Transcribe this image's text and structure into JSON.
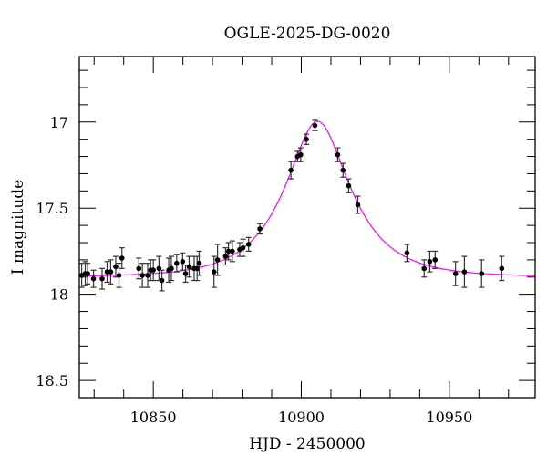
{
  "chart_data": {
    "type": "scatter",
    "title": "OGLE-2025-DG-0020",
    "xlabel": "HJD - 2450000",
    "ylabel": "I magnitude",
    "xlim": [
      10825,
      10979
    ],
    "ylim": [
      18.6,
      16.62
    ],
    "y_inverted": true,
    "x_ticks": [
      10850,
      10900,
      10950
    ],
    "x_tick_labels": [
      "10850",
      "10900",
      "10950"
    ],
    "x_minor_step": 10,
    "y_ticks": [
      17,
      17.5,
      18,
      18.5
    ],
    "y_tick_labels": [
      "17",
      "17.5",
      "18",
      "18.5"
    ],
    "y_minor_step": 0.1,
    "grid": false,
    "colors": {
      "points": "#000000",
      "model": "#ff00ff"
    },
    "points": [
      {
        "x": 10825.8,
        "y": 17.89,
        "err": 0.07
      },
      {
        "x": 10827.0,
        "y": 17.88,
        "err": 0.07
      },
      {
        "x": 10827.8,
        "y": 17.88,
        "err": 0.06
      },
      {
        "x": 10829.8,
        "y": 17.91,
        "err": 0.05
      },
      {
        "x": 10832.7,
        "y": 17.91,
        "err": 0.06
      },
      {
        "x": 10834.4,
        "y": 17.87,
        "err": 0.06
      },
      {
        "x": 10835.6,
        "y": 17.87,
        "err": 0.07
      },
      {
        "x": 10837.3,
        "y": 17.84,
        "err": 0.06
      },
      {
        "x": 10838.4,
        "y": 17.89,
        "err": 0.07
      },
      {
        "x": 10839.4,
        "y": 17.79,
        "err": 0.06
      },
      {
        "x": 10845.1,
        "y": 17.85,
        "err": 0.06
      },
      {
        "x": 10846.3,
        "y": 17.89,
        "err": 0.07
      },
      {
        "x": 10848.1,
        "y": 17.89,
        "err": 0.07
      },
      {
        "x": 10849.1,
        "y": 17.86,
        "err": 0.06
      },
      {
        "x": 10850.0,
        "y": 17.86,
        "err": 0.06
      },
      {
        "x": 10851.9,
        "y": 17.85,
        "err": 0.07
      },
      {
        "x": 10852.9,
        "y": 17.92,
        "err": 0.06
      },
      {
        "x": 10855.2,
        "y": 17.86,
        "err": 0.07
      },
      {
        "x": 10856.1,
        "y": 17.85,
        "err": 0.07
      },
      {
        "x": 10857.9,
        "y": 17.82,
        "err": 0.05
      },
      {
        "x": 10859.9,
        "y": 17.81,
        "err": 0.05
      },
      {
        "x": 10860.9,
        "y": 17.88,
        "err": 0.05
      },
      {
        "x": 10862.1,
        "y": 17.84,
        "err": 0.06
      },
      {
        "x": 10863.8,
        "y": 17.85,
        "err": 0.07
      },
      {
        "x": 10864.8,
        "y": 17.85,
        "err": 0.07
      },
      {
        "x": 10865.5,
        "y": 17.82,
        "err": 0.07
      },
      {
        "x": 10870.5,
        "y": 17.87,
        "err": 0.09
      },
      {
        "x": 10871.7,
        "y": 17.8,
        "err": 0.09
      },
      {
        "x": 10874.4,
        "y": 17.78,
        "err": 0.05
      },
      {
        "x": 10875.4,
        "y": 17.75,
        "err": 0.05
      },
      {
        "x": 10876.7,
        "y": 17.75,
        "err": 0.06
      },
      {
        "x": 10879.2,
        "y": 17.74,
        "err": 0.04
      },
      {
        "x": 10880.3,
        "y": 17.73,
        "err": 0.05
      },
      {
        "x": 10882.2,
        "y": 17.71,
        "err": 0.04
      },
      {
        "x": 10886.0,
        "y": 17.62,
        "err": 0.03
      },
      {
        "x": 10896.5,
        "y": 17.28,
        "err": 0.05
      },
      {
        "x": 10898.7,
        "y": 17.2,
        "err": 0.03
      },
      {
        "x": 10899.8,
        "y": 17.19,
        "err": 0.04
      },
      {
        "x": 10901.7,
        "y": 17.1,
        "err": 0.03
      },
      {
        "x": 10904.6,
        "y": 17.02,
        "err": 0.03
      },
      {
        "x": 10912.3,
        "y": 17.19,
        "err": 0.04
      },
      {
        "x": 10914.1,
        "y": 17.28,
        "err": 0.04
      },
      {
        "x": 10916.0,
        "y": 17.37,
        "err": 0.04
      },
      {
        "x": 10919.1,
        "y": 17.48,
        "err": 0.05
      },
      {
        "x": 10935.7,
        "y": 17.76,
        "err": 0.05
      },
      {
        "x": 10941.5,
        "y": 17.85,
        "err": 0.05
      },
      {
        "x": 10943.4,
        "y": 17.81,
        "err": 0.06
      },
      {
        "x": 10945.2,
        "y": 17.8,
        "err": 0.05
      },
      {
        "x": 10952.1,
        "y": 17.88,
        "err": 0.07
      },
      {
        "x": 10955.1,
        "y": 17.87,
        "err": 0.09
      },
      {
        "x": 10960.9,
        "y": 17.88,
        "err": 0.08
      },
      {
        "x": 10967.7,
        "y": 17.85,
        "err": 0.07
      }
    ],
    "model": {
      "type": "paczynski",
      "t0": 10905.5,
      "u0": 0.47,
      "tE": 19.5,
      "baseline_mag": 17.9
    }
  }
}
